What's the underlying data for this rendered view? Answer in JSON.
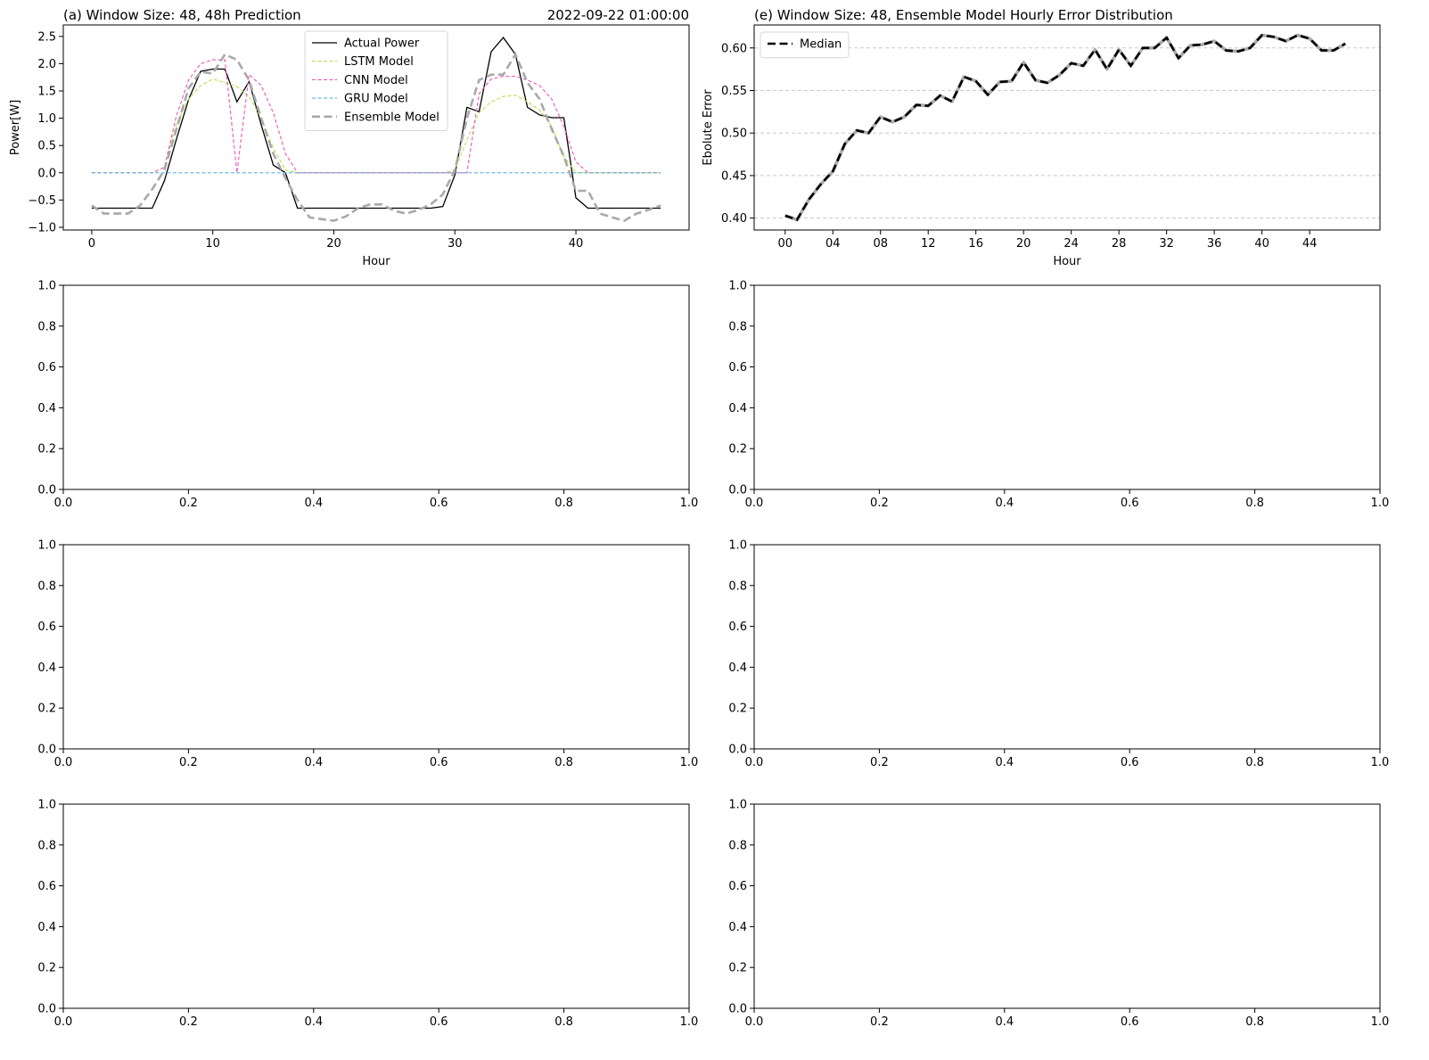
{
  "chart_data": [
    {
      "type": "line",
      "title": "(a) Window Size: 48, 48h Prediction",
      "title_right": "2022-09-22 01:00:00",
      "xlabel": "Hour",
      "ylabel": "Power[W]",
      "xlim": [
        -2.35,
        49.35
      ],
      "ylim": [
        -1.05,
        2.71
      ],
      "xticks": [
        0,
        10,
        20,
        30,
        40
      ],
      "xtick_labels": [
        "0",
        "10",
        "20",
        "30",
        "40"
      ],
      "yticks": [
        -1.0,
        -0.5,
        0.0,
        0.5,
        1.0,
        1.5,
        2.0,
        2.5
      ],
      "ytick_labels": [
        "−1.0",
        "−0.5",
        "0.0",
        "0.5",
        "1.0",
        "1.5",
        "2.0",
        "2.5"
      ],
      "legend_position": "top-center",
      "grid": false,
      "series": [
        {
          "name": "Actual Power",
          "color": "#000000",
          "style": "solid",
          "values": [
            -0.65,
            -0.65,
            -0.65,
            -0.65,
            -0.65,
            -0.65,
            -0.15,
            0.62,
            1.34,
            1.86,
            1.9,
            1.9,
            1.3,
            1.67,
            0.88,
            0.14,
            0.0,
            -0.65,
            -0.65,
            -0.65,
            -0.65,
            -0.65,
            -0.65,
            -0.65,
            -0.65,
            -0.65,
            -0.65,
            -0.65,
            -0.65,
            -0.62,
            -0.04,
            1.2,
            1.12,
            2.22,
            2.48,
            2.17,
            1.2,
            1.06,
            1.01,
            1.01,
            -0.46,
            -0.65,
            -0.65,
            -0.65,
            -0.65,
            -0.65,
            -0.65,
            -0.65
          ]
        },
        {
          "name": "LSTM Model",
          "color": "#aee44a",
          "style": "dashed",
          "values": [
            0,
            0,
            0,
            0,
            0,
            0,
            0.1,
            0.9,
            1.35,
            1.6,
            1.72,
            1.65,
            1.58,
            1.4,
            1.0,
            0.45,
            0.05,
            0,
            0,
            0,
            0,
            0,
            0,
            0,
            0,
            0,
            0,
            0,
            0,
            0,
            0.05,
            0.6,
            1.1,
            1.3,
            1.4,
            1.42,
            1.3,
            1.15,
            0.85,
            0.3,
            0,
            0,
            0,
            0,
            0,
            0,
            0,
            0
          ]
        },
        {
          "name": "CNN Model",
          "color": "#f055b4",
          "style": "dashed",
          "values": [
            0,
            0,
            0,
            0,
            0,
            0,
            0.1,
            1.05,
            1.7,
            2.0,
            2.07,
            2.07,
            0,
            1.8,
            1.6,
            1.1,
            0.35,
            0,
            0,
            0,
            0,
            0,
            0,
            0,
            0,
            0,
            0,
            0,
            0,
            0,
            0,
            0,
            1.45,
            1.72,
            1.77,
            1.77,
            1.7,
            1.6,
            1.35,
            0.85,
            0.2,
            0,
            0,
            0,
            0,
            0,
            0,
            0
          ]
        },
        {
          "name": "GRU Model",
          "color": "#5ab4e6",
          "style": "dashed",
          "values": [
            0,
            0,
            0,
            0,
            0,
            0,
            0,
            0,
            0,
            0,
            0,
            0,
            0,
            0,
            0,
            0,
            0,
            0,
            0,
            0,
            0,
            0,
            0,
            0,
            0,
            0,
            0,
            0,
            0,
            0,
            0,
            0,
            0,
            0,
            0,
            0,
            0,
            0,
            0,
            0,
            0,
            0,
            0,
            0,
            0,
            0,
            0,
            0
          ]
        },
        {
          "name": "Ensemble Model",
          "color": "#a9a9a9",
          "style": "bold-dashed",
          "values": [
            -0.6,
            -0.75,
            -0.75,
            -0.75,
            -0.6,
            -0.3,
            0.05,
            0.8,
            1.55,
            1.85,
            1.82,
            2.17,
            2.07,
            1.7,
            1.0,
            0.35,
            -0.1,
            -0.5,
            -0.82,
            -0.85,
            -0.88,
            -0.8,
            -0.65,
            -0.58,
            -0.58,
            -0.7,
            -0.75,
            -0.68,
            -0.58,
            -0.4,
            0.05,
            1.0,
            1.7,
            1.8,
            1.8,
            2.17,
            1.65,
            1.35,
            0.8,
            0.3,
            -0.33,
            -0.33,
            -0.75,
            -0.82,
            -0.88,
            -0.75,
            -0.68,
            -0.6
          ]
        }
      ]
    },
    {
      "type": "line",
      "title": "(e) Window Size: 48, Ensemble Model Hourly Error Distribution",
      "xlabel": "Hour",
      "ylabel": "Ebolute Error",
      "xlim": [
        -2.6,
        49.9
      ],
      "ylim": [
        0.386,
        0.627
      ],
      "xticks": [
        0,
        4,
        8,
        12,
        16,
        20,
        24,
        28,
        32,
        36,
        40,
        44
      ],
      "xtick_labels": [
        "00",
        "04",
        "08",
        "12",
        "16",
        "20",
        "24",
        "28",
        "32",
        "36",
        "40",
        "44"
      ],
      "yticks": [
        0.4,
        0.45,
        0.5,
        0.55,
        0.6
      ],
      "ytick_labels": [
        "0.40",
        "0.45",
        "0.50",
        "0.55",
        "0.60"
      ],
      "legend_position": "top-left",
      "grid": true,
      "series": [
        {
          "name": "Median",
          "color": "#000000",
          "style": "bold-dashed",
          "values": [
            0.403,
            0.398,
            0.422,
            0.44,
            0.455,
            0.487,
            0.503,
            0.5,
            0.519,
            0.513,
            0.519,
            0.533,
            0.532,
            0.544,
            0.537,
            0.566,
            0.561,
            0.545,
            0.56,
            0.561,
            0.583,
            0.562,
            0.559,
            0.568,
            0.582,
            0.579,
            0.598,
            0.575,
            0.598,
            0.579,
            0.6,
            0.6,
            0.612,
            0.588,
            0.603,
            0.604,
            0.608,
            0.597,
            0.596,
            0.6,
            0.615,
            0.613,
            0.608,
            0.615,
            0.611,
            0.597,
            0.597,
            0.605
          ]
        }
      ]
    },
    {
      "type": "empty",
      "xlim": [
        0,
        1
      ],
      "ylim": [
        0,
        1
      ],
      "xtick_labels": [
        "0.0",
        "0.2",
        "0.4",
        "0.6",
        "0.8",
        "1.0"
      ],
      "ytick_labels": [
        "0.0",
        "0.2",
        "0.4",
        "0.6",
        "0.8",
        "1.0"
      ]
    },
    {
      "type": "empty",
      "xlim": [
        0,
        1
      ],
      "ylim": [
        0,
        1
      ],
      "xtick_labels": [
        "0.0",
        "0.2",
        "0.4",
        "0.6",
        "0.8",
        "1.0"
      ],
      "ytick_labels": [
        "0.0",
        "0.2",
        "0.4",
        "0.6",
        "0.8",
        "1.0"
      ]
    },
    {
      "type": "empty",
      "xlim": [
        0,
        1
      ],
      "ylim": [
        0,
        1
      ],
      "xtick_labels": [
        "0.0",
        "0.2",
        "0.4",
        "0.6",
        "0.8",
        "1.0"
      ],
      "ytick_labels": [
        "0.0",
        "0.2",
        "0.4",
        "0.6",
        "0.8",
        "1.0"
      ]
    },
    {
      "type": "empty",
      "xlim": [
        0,
        1
      ],
      "ylim": [
        0,
        1
      ],
      "xtick_labels": [
        "0.0",
        "0.2",
        "0.4",
        "0.6",
        "0.8",
        "1.0"
      ],
      "ytick_labels": [
        "0.0",
        "0.2",
        "0.4",
        "0.6",
        "0.8",
        "1.0"
      ]
    },
    {
      "type": "empty",
      "xlim": [
        0,
        1
      ],
      "ylim": [
        0,
        1
      ],
      "xtick_labels": [
        "0.0",
        "0.2",
        "0.4",
        "0.6",
        "0.8",
        "1.0"
      ],
      "ytick_labels": [
        "0.0",
        "0.2",
        "0.4",
        "0.6",
        "0.8",
        "1.0"
      ]
    },
    {
      "type": "empty",
      "xlim": [
        0,
        1
      ],
      "ylim": [
        0,
        1
      ],
      "xtick_labels": [
        "0.0",
        "0.2",
        "0.4",
        "0.6",
        "0.8",
        "1.0"
      ],
      "ytick_labels": [
        "0.0",
        "0.2",
        "0.4",
        "0.6",
        "0.8",
        "1.0"
      ]
    }
  ]
}
